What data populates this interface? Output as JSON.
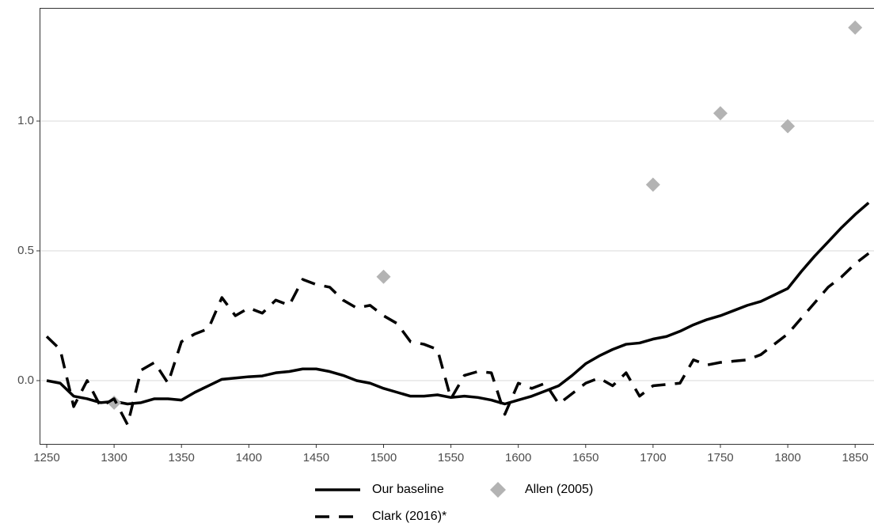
{
  "chart_data": {
    "type": "line",
    "xlim": [
      1244.7,
      1864
    ],
    "xticks": [
      1250,
      1300,
      1350,
      1400,
      1450,
      1500,
      1550,
      1600,
      1650,
      1700,
      1750,
      1800,
      1850
    ],
    "ylim": [
      -0.247,
      1.436
    ],
    "yticks": [
      {
        "value": 0,
        "label": "0.0"
      },
      {
        "value": 0.5,
        "label": "0.5"
      },
      {
        "value": 1,
        "label": "1.0"
      }
    ],
    "grid": true,
    "series": [
      {
        "name": "Our baseline",
        "color": "#000000",
        "style": "solid",
        "x": [
          1250,
          1260,
          1270,
          1280,
          1290,
          1300,
          1310,
          1320,
          1330,
          1340,
          1350,
          1360,
          1370,
          1380,
          1390,
          1400,
          1410,
          1420,
          1430,
          1440,
          1450,
          1460,
          1470,
          1480,
          1490,
          1500,
          1510,
          1520,
          1530,
          1540,
          1550,
          1560,
          1570,
          1580,
          1590,
          1600,
          1610,
          1620,
          1630,
          1640,
          1650,
          1660,
          1670,
          1680,
          1690,
          1700,
          1710,
          1720,
          1730,
          1740,
          1750,
          1760,
          1770,
          1780,
          1790,
          1800,
          1810,
          1820,
          1830,
          1840,
          1850,
          1860
        ],
        "values": [
          0,
          -0.01,
          -0.06,
          -0.07,
          -0.085,
          -0.08,
          -0.09,
          -0.085,
          -0.07,
          -0.07,
          -0.075,
          -0.045,
          -0.02,
          0.005,
          0.01,
          0.015,
          0.018,
          0.03,
          0.035,
          0.045,
          0.045,
          0.035,
          0.02,
          0,
          -0.01,
          -0.03,
          -0.045,
          -0.06,
          -0.06,
          -0.055,
          -0.065,
          -0.06,
          -0.065,
          -0.075,
          -0.09,
          -0.075,
          -0.06,
          -0.04,
          -0.02,
          0.02,
          0.065,
          0.095,
          0.12,
          0.14,
          0.145,
          0.16,
          0.17,
          0.19,
          0.215,
          0.235,
          0.25,
          0.27,
          0.29,
          0.305,
          0.33,
          0.355,
          0.42,
          0.48,
          0.535,
          0.59,
          0.64,
          0.685
        ]
      },
      {
        "name": "Allen (2005)",
        "color": "#b3b3b3",
        "style": "diamond",
        "x": [
          1300,
          1500,
          1700,
          1750,
          1800,
          1850
        ],
        "values": [
          -0.085,
          0.4,
          0.755,
          1.03,
          0.98,
          1.36
        ]
      },
      {
        "name": "Clark (2016)*",
        "color": "#000000",
        "style": "dashed",
        "x": [
          1250,
          1260,
          1270,
          1280,
          1290,
          1300,
          1310,
          1320,
          1330,
          1340,
          1350,
          1360,
          1370,
          1380,
          1390,
          1400,
          1410,
          1420,
          1430,
          1440,
          1450,
          1460,
          1470,
          1480,
          1490,
          1500,
          1510,
          1520,
          1530,
          1540,
          1550,
          1560,
          1570,
          1580,
          1590,
          1600,
          1610,
          1620,
          1630,
          1640,
          1650,
          1660,
          1670,
          1680,
          1690,
          1700,
          1710,
          1720,
          1730,
          1740,
          1750,
          1760,
          1770,
          1780,
          1790,
          1800,
          1810,
          1820,
          1830,
          1840,
          1850,
          1860
        ],
        "values": [
          0.17,
          0.12,
          -0.1,
          0,
          -0.1,
          -0.07,
          -0.17,
          0.04,
          0.07,
          -0.01,
          0.15,
          0.18,
          0.2,
          0.32,
          0.25,
          0.28,
          0.26,
          0.31,
          0.29,
          0.39,
          0.37,
          0.36,
          0.31,
          0.28,
          0.29,
          0.25,
          0.22,
          0.15,
          0.14,
          0.12,
          -0.07,
          0.02,
          0.035,
          0.03,
          -0.13,
          -0.01,
          -0.03,
          -0.01,
          -0.09,
          -0.05,
          -0.01,
          0.01,
          -0.02,
          0.03,
          -0.06,
          -0.02,
          -0.015,
          -0.01,
          0.08,
          0.06,
          0.07,
          0.075,
          0.08,
          0.1,
          0.14,
          0.18,
          0.24,
          0.3,
          0.36,
          0.4,
          0.45,
          0.49
        ]
      }
    ]
  }
}
